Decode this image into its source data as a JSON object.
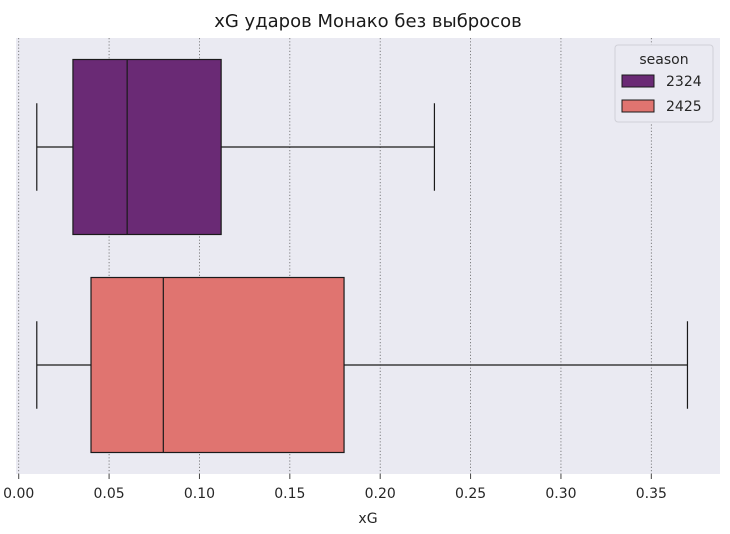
{
  "chart_data": {
    "type": "boxplot",
    "title": "xG ударов Монако без выбросов",
    "xlabel": "xG",
    "ylabel": "",
    "orientation": "horizontal",
    "xlim": [
      -0.0015,
      0.388
    ],
    "xticks": [
      0.0,
      0.05,
      0.1,
      0.15,
      0.2,
      0.25,
      0.3,
      0.35
    ],
    "xtick_labels": [
      "0.00",
      "0.05",
      "0.10",
      "0.15",
      "0.20",
      "0.25",
      "0.30",
      "0.35"
    ],
    "grid": "vertical dotted",
    "legend": {
      "title": "season",
      "placement": "top-right"
    },
    "series": [
      {
        "name": "2324",
        "color": "#6a2a75",
        "whislo": 0.01,
        "q1": 0.03,
        "med": 0.06,
        "q3": 0.112,
        "whishi": 0.23
      },
      {
        "name": "2425",
        "color": "#e07470",
        "whislo": 0.01,
        "q1": 0.04,
        "med": 0.08,
        "q3": 0.18,
        "whishi": 0.37
      }
    ]
  },
  "colors": {
    "plot_bg": "#eaeaf2",
    "grid": "#666666",
    "line": "#1a1a1a"
  }
}
